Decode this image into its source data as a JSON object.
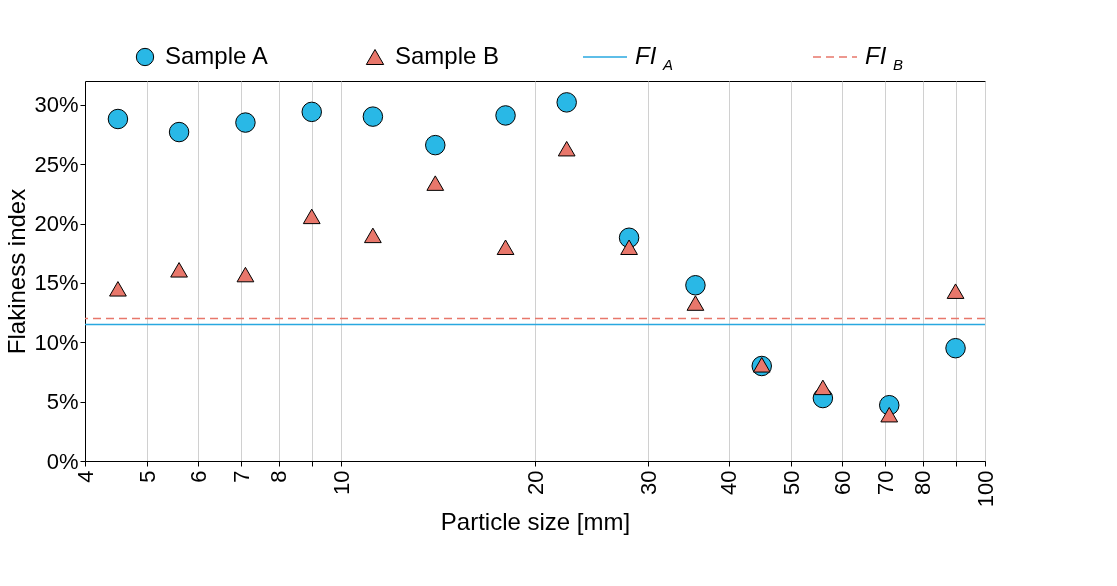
{
  "chart_data": {
    "type": "scatter",
    "xlabel": "Particle size [mm]",
    "ylabel": "Flakiness index",
    "x": [
      4.5,
      5.6,
      7.1,
      9,
      11.2,
      14,
      18,
      22.4,
      28,
      35.5,
      45,
      56,
      71,
      90
    ],
    "series": [
      {
        "name": "Sample A",
        "color": "#29b8e6",
        "marker": "circle",
        "values": [
          28.8,
          27.7,
          28.5,
          29.4,
          29.0,
          26.6,
          29.1,
          30.2,
          18.8,
          14.8,
          8.0,
          5.3,
          4.7,
          9.5
        ]
      },
      {
        "name": "Sample B",
        "color": "#e8776b",
        "marker": "triangle",
        "values": [
          14.5,
          16.1,
          15.7,
          20.6,
          19.0,
          23.4,
          18.0,
          26.3,
          18.0,
          13.3,
          8.1,
          6.2,
          3.9,
          14.3
        ]
      }
    ],
    "ref_lines": [
      {
        "axis": "y",
        "value": 11.5,
        "label": "FI$_{A}$",
        "color": "#29a8e0",
        "line_style": "solid"
      },
      {
        "axis": "y",
        "value": 12.0,
        "label": "FI$_{B}$",
        "color": "#e8776b",
        "line_style": "dashed"
      }
    ],
    "log": "x",
    "xlim": [
      4,
      100
    ],
    "xticks": [
      4,
      5,
      6,
      7,
      8,
      {
        "value": 9,
        "label": null
      },
      10,
      20,
      30,
      40,
      50,
      60,
      70,
      80,
      {
        "value": 90,
        "label": null
      },
      100
    ],
    "ylim": [
      0,
      32
    ],
    "yticks": [
      {
        "value": 0,
        "label": "0%"
      },
      {
        "value": 5,
        "label": "5%"
      },
      {
        "value": 10,
        "label": "10%"
      },
      {
        "value": 15,
        "label": "15%"
      },
      {
        "value": 20,
        "label": "20%"
      },
      {
        "value": 25,
        "label": "25%"
      },
      {
        "value": 30,
        "label": "30%"
      }
    ],
    "grid": "x",
    "legend": "top"
  }
}
